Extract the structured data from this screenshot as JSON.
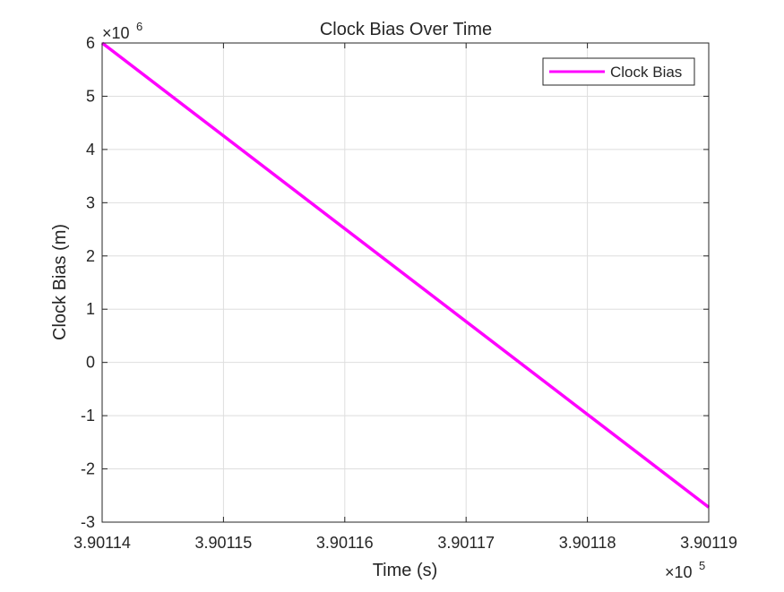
{
  "chart_data": {
    "type": "line",
    "title": "Clock Bias Over Time",
    "xlabel": "Time (s)",
    "ylabel": "Clock Bias (m)",
    "x_exponent_label": "×10",
    "x_exponent": "5",
    "y_exponent_label": "×10",
    "y_exponent": "6",
    "xlim": [
      3.90114,
      3.90119
    ],
    "ylim": [
      -3,
      6
    ],
    "xticks": [
      3.90114,
      3.90115,
      3.90116,
      3.90117,
      3.90118,
      3.90119
    ],
    "xtick_labels": [
      "3.90114",
      "3.90115",
      "3.90116",
      "3.90117",
      "3.90118",
      "3.90119"
    ],
    "yticks": [
      -3,
      -2,
      -1,
      0,
      1,
      2,
      3,
      4,
      5,
      6
    ],
    "ytick_labels": [
      "-3",
      "-2",
      "-1",
      "0",
      "1",
      "2",
      "3",
      "4",
      "5",
      "6"
    ],
    "grid": true,
    "legend_position": "top-right",
    "series": [
      {
        "name": "Clock Bias",
        "color": "#ff00ff",
        "x": [
          3.90114,
          3.90119
        ],
        "y": [
          6.0,
          -2.72
        ]
      }
    ]
  }
}
